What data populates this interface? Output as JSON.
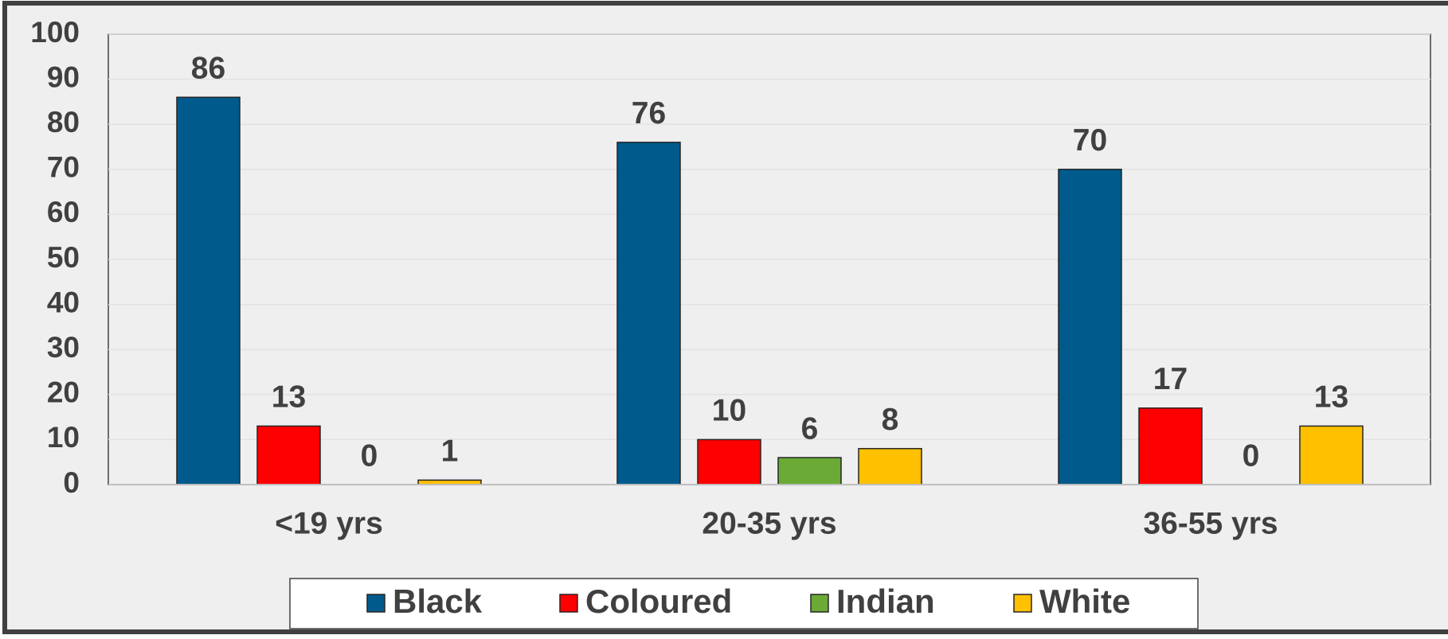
{
  "chart_data": {
    "type": "bar",
    "categories": [
      "<19 yrs",
      "20-35 yrs",
      "36-55 yrs"
    ],
    "series": [
      {
        "name": "Black",
        "color": "#005a8c",
        "values": [
          86,
          76,
          70
        ]
      },
      {
        "name": "Coloured",
        "color": "#ff0000",
        "values": [
          13,
          10,
          17
        ]
      },
      {
        "name": "Indian",
        "color": "#6aaa35",
        "values": [
          0,
          6,
          0
        ]
      },
      {
        "name": "White",
        "color": "#ffc000",
        "values": [
          1,
          8,
          13
        ]
      }
    ],
    "ylim": [
      0,
      100
    ],
    "yticks": [
      0,
      10,
      20,
      30,
      40,
      50,
      60,
      70,
      80,
      90,
      100
    ],
    "grid": true,
    "legend": "bottom"
  }
}
